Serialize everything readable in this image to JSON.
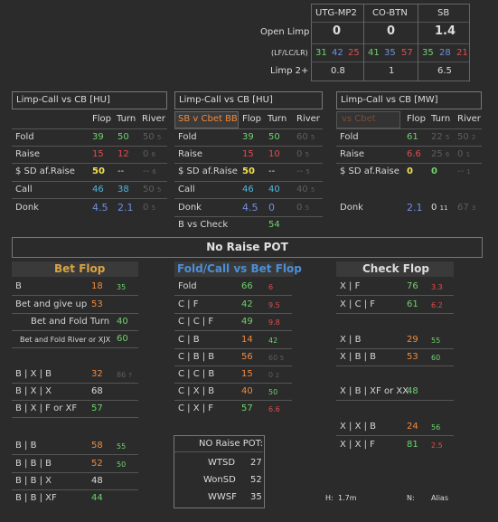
{
  "top": {
    "cols": [
      "UTG-MP2",
      "CO-BTN",
      "SB"
    ],
    "open_limp_label": "Open Limp",
    "open_limp": [
      "0",
      "0",
      "1.4"
    ],
    "lf_lc_lr_label": "(LF/LC/LR)",
    "lf": [
      [
        "31",
        "42",
        "25"
      ],
      [
        "41",
        "35",
        "57"
      ],
      [
        "35",
        "28",
        "21"
      ]
    ],
    "limp2_label": "Limp 2+",
    "limp2": [
      "0.8",
      "1",
      "6.5"
    ]
  },
  "p1": {
    "title": "Limp-Call  vs CB [HU]",
    "cols": [
      "Flop",
      "Turn",
      "River"
    ],
    "rows": [
      {
        "label": "Fold",
        "f": "39",
        "t": "50",
        "r": "50",
        "rs": "5"
      },
      {
        "label": "Raise",
        "f": "15",
        "t": "12",
        "r": "0",
        "rs": "6"
      },
      {
        "label": "$ SD af.Raise",
        "f": "50",
        "t": "--",
        "r": "--",
        "rs": "6"
      },
      {
        "label": "Call",
        "f": "46",
        "t": "38",
        "r": "50",
        "rs": "5"
      },
      {
        "label": "Donk",
        "f": "4.5",
        "t": "2.1",
        "r": "0",
        "rs": "5"
      }
    ]
  },
  "p2": {
    "title": "Limp-Call  vs CB [HU]",
    "sub": "SB v Cbet BB",
    "cols": [
      "Flop",
      "Turn",
      "River"
    ],
    "rows": [
      {
        "label": "Fold",
        "f": "39",
        "t": "50",
        "r": "60",
        "rs": "5"
      },
      {
        "label": "Raise",
        "f": "15",
        "t": "10",
        "r": "0",
        "rs": "5"
      },
      {
        "label": "$ SD af.Raise",
        "f": "50",
        "t": "--",
        "r": "--",
        "rs": "5"
      },
      {
        "label": "Call",
        "f": "46",
        "t": "40",
        "r": "40",
        "rs": "5"
      },
      {
        "label": "Donk",
        "f": "4.5",
        "t": "0",
        "r": "0",
        "rs": "5"
      },
      {
        "label": "B vs Check",
        "f": "54"
      }
    ]
  },
  "p3": {
    "title": "Limp-Call  vs CB [MW]",
    "sub": "vs Cbet",
    "cols": [
      "Flop",
      "Turn",
      "River"
    ],
    "rows": [
      {
        "label": "Fold",
        "f": "61",
        "t": "22",
        "ts": "5",
        "r": "50",
        "rs": "2"
      },
      {
        "label": "Raise",
        "f": "6.6",
        "t": "25",
        "ts": "6",
        "r": "0",
        "rs": "1"
      },
      {
        "label": "$ SD af.Raise",
        "f": "0",
        "t": "0",
        "r": "--",
        "rs": "1"
      },
      {
        "label": "Donk",
        "f": "2.1",
        "t": "0",
        "ts": "11",
        "r": "67",
        "rs": "3"
      }
    ]
  },
  "banner": "No Raise POT",
  "bet_flop": {
    "title": "Bet Flop",
    "rows": [
      {
        "label": "B",
        "v": "18",
        "s": "35"
      },
      {
        "label": "Bet and give up",
        "v": "53"
      },
      {
        "label": "Bet and Fold Turn",
        "v": "40"
      },
      {
        "label": "Bet and Fold River or XJX",
        "v": "60"
      },
      {
        "label": "B | X | B",
        "v": "32",
        "s": "86",
        "s2": "7"
      },
      {
        "label": "B | X | X",
        "v": "68"
      },
      {
        "label": "B | X | F or XF",
        "v": "57"
      },
      {
        "label": "B | B",
        "v": "58",
        "s": "55"
      },
      {
        "label": "B | B | B",
        "v": "52",
        "s": "50"
      },
      {
        "label": "B | B | X",
        "v": "48"
      },
      {
        "label": "B | B | XF",
        "v": "44"
      }
    ]
  },
  "fold_call": {
    "title": "Fold/Call vs Bet Flop",
    "rows": [
      {
        "label": "Fold",
        "v": "66",
        "s": "6"
      },
      {
        "label": "C | F",
        "v": "42",
        "s": "9.5"
      },
      {
        "label": "C | C | F",
        "v": "49",
        "s": "9.8"
      },
      {
        "label": "C | B",
        "v": "14",
        "s": "42"
      },
      {
        "label": "C | B | B",
        "v": "56",
        "s": "60",
        "s2": "5"
      },
      {
        "label": "C | C | B",
        "v": "15",
        "s": "0",
        "s2": "2"
      },
      {
        "label": "C | X | B",
        "v": "40",
        "s": "50"
      },
      {
        "label": "C | X | F",
        "v": "57",
        "s": "6.6"
      }
    ]
  },
  "check_flop": {
    "title": "Check  Flop",
    "rows": [
      {
        "label": "X | F",
        "v": "76",
        "s": "3.3"
      },
      {
        "label": "X | C | F",
        "v": "61",
        "s": "6.2"
      },
      {
        "label": "X | B",
        "v": "29",
        "s": "55"
      },
      {
        "label": "X | B | B",
        "v": "53",
        "s": "60"
      },
      {
        "label": "X | B |  XF or XX",
        "v": "48"
      },
      {
        "label": "X | X | B",
        "v": "24",
        "s": "56"
      },
      {
        "label": "X | X | F",
        "v": "81",
        "s": "2.5"
      }
    ]
  },
  "nrp": {
    "title": "NO Raise POT:",
    "rows": [
      {
        "label": "WTSD",
        "v": "27"
      },
      {
        "label": "WonSD",
        "v": "52"
      },
      {
        "label": "WWSF",
        "v": "35"
      }
    ]
  },
  "footer": {
    "h_label": "H:",
    "h": "1.7m",
    "n_label": "N:",
    "n": "Alias"
  }
}
